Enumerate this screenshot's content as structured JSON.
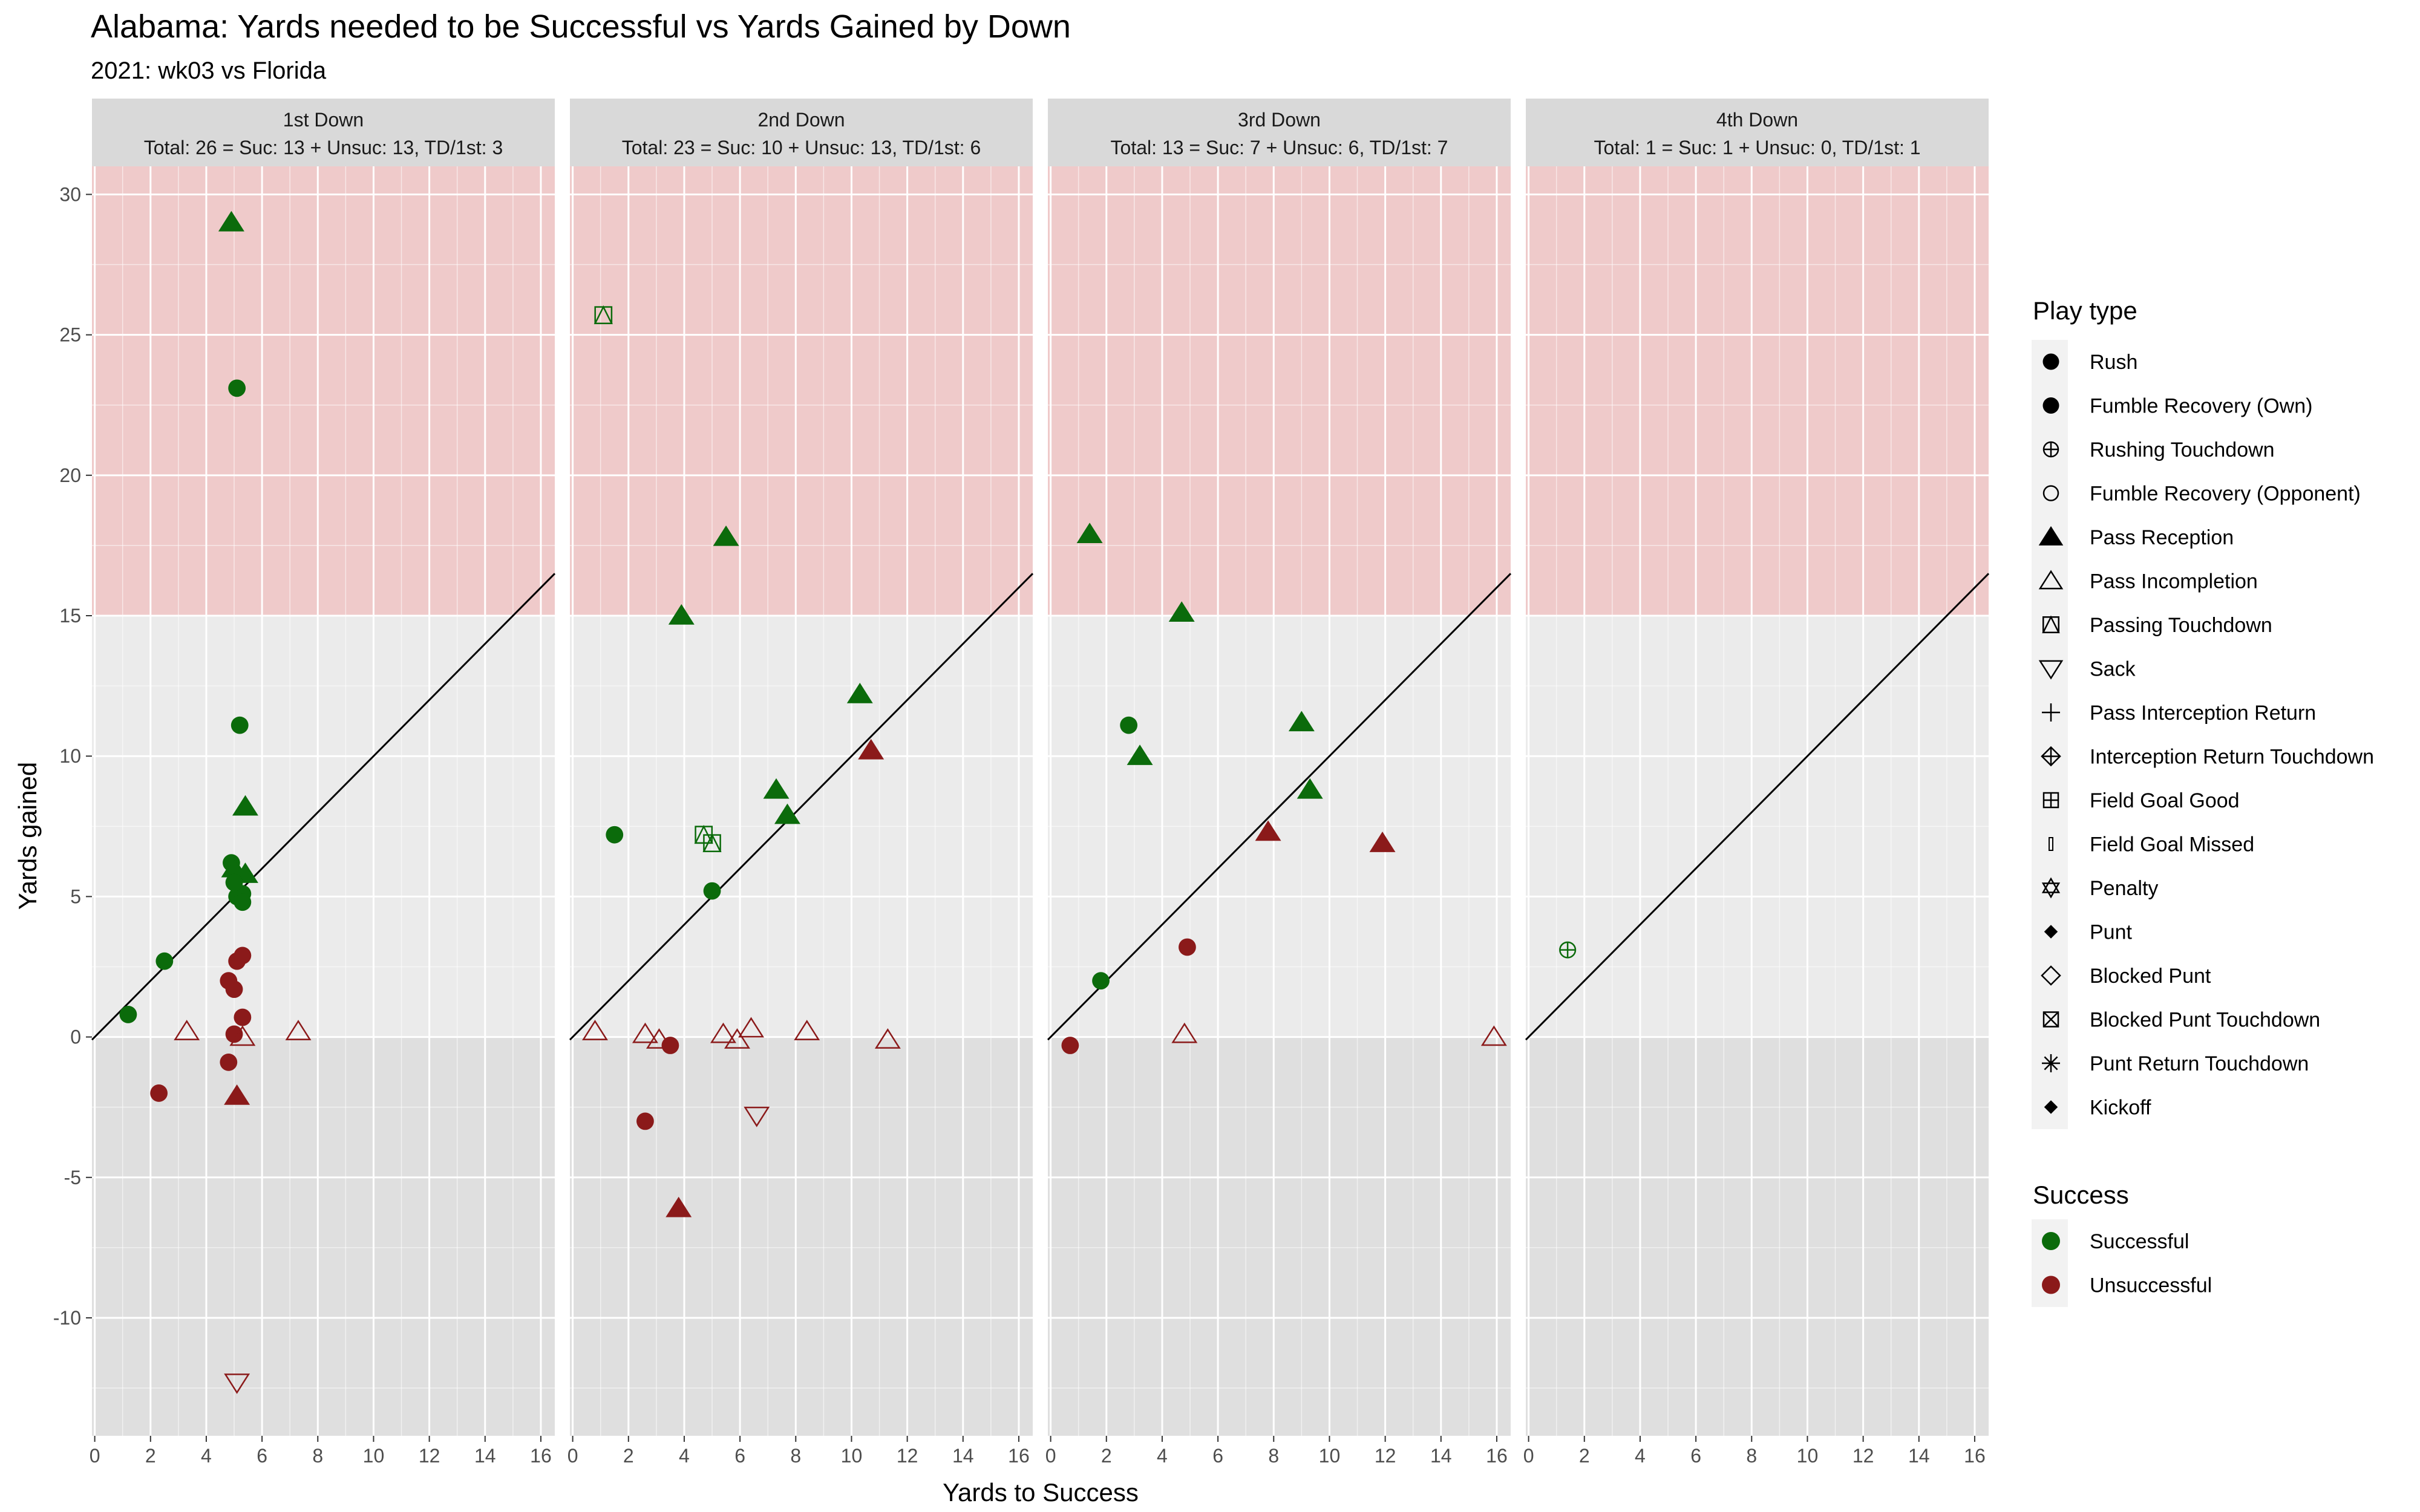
{
  "chart_data": {
    "type": "scatter",
    "title": "Alabama: Yards needed to be Successful vs Yards Gained by Down",
    "subtitle": "2021: wk03 vs Florida",
    "xlabel": "Yards to Success",
    "ylabel": "Yards gained",
    "xlim": [
      -0.1,
      16.5
    ],
    "ylim": [
      -14.2,
      31
    ],
    "x_ticks": [
      0,
      2,
      4,
      6,
      8,
      10,
      12,
      14,
      16
    ],
    "y_ticks": [
      -10,
      -5,
      0,
      5,
      10,
      15,
      20,
      25,
      30
    ],
    "grid": true,
    "reference_line": "y = x",
    "shaded_bands": [
      {
        "from": 15,
        "to": 31,
        "color": "#f0c4c4"
      },
      {
        "from": -14.2,
        "to": 0,
        "color": "#dddddd"
      }
    ],
    "colors": {
      "Successful": "#0b6b0b",
      "Unsuccessful": "#8b1a1a",
      "panel_bg": "#ebebeb",
      "strip_bg": "#d9d9d9"
    },
    "panels": [
      {
        "title": "1st Down",
        "summary": "Total: 26 = Suc: 13 + Unsuc: 13, TD/1st: 3",
        "points": [
          {
            "x": 4.9,
            "y": 29.0,
            "shape": "triangle",
            "success": true
          },
          {
            "x": 5.1,
            "y": 23.1,
            "shape": "circle",
            "success": true
          },
          {
            "x": 5.2,
            "y": 11.1,
            "shape": "circle",
            "success": true
          },
          {
            "x": 5.4,
            "y": 8.2,
            "shape": "triangle",
            "success": true
          },
          {
            "x": 4.9,
            "y": 6.2,
            "shape": "circle",
            "success": true
          },
          {
            "x": 5.0,
            "y": 6.0,
            "shape": "triangle",
            "success": true
          },
          {
            "x": 5.4,
            "y": 5.8,
            "shape": "triangle",
            "success": true
          },
          {
            "x": 5.1,
            "y": 5.0,
            "shape": "circle",
            "success": true
          },
          {
            "x": 5.3,
            "y": 5.1,
            "shape": "circle",
            "success": true
          },
          {
            "x": 5.3,
            "y": 4.8,
            "shape": "circle",
            "success": true
          },
          {
            "x": 2.5,
            "y": 2.7,
            "shape": "circle",
            "success": true
          },
          {
            "x": 1.2,
            "y": 0.8,
            "shape": "circle",
            "success": true
          },
          {
            "x": 5.0,
            "y": 5.5,
            "shape": "circle",
            "success": true
          },
          {
            "x": 5.3,
            "y": 2.9,
            "shape": "circle",
            "success": false
          },
          {
            "x": 5.1,
            "y": 2.7,
            "shape": "circle",
            "success": false
          },
          {
            "x": 4.8,
            "y": 2.0,
            "shape": "circle",
            "success": false
          },
          {
            "x": 5.0,
            "y": 1.7,
            "shape": "circle",
            "success": false
          },
          {
            "x": 5.3,
            "y": 0.7,
            "shape": "circle",
            "success": false
          },
          {
            "x": 5.0,
            "y": 0.1,
            "shape": "circle",
            "success": false
          },
          {
            "x": 3.3,
            "y": 0.2,
            "shape": "triangle-open",
            "success": false
          },
          {
            "x": 7.3,
            "y": 0.2,
            "shape": "triangle-open",
            "success": false
          },
          {
            "x": 5.3,
            "y": 0.0,
            "shape": "triangle-open",
            "success": false
          },
          {
            "x": 4.8,
            "y": -0.9,
            "shape": "circle",
            "success": false
          },
          {
            "x": 2.3,
            "y": -2.0,
            "shape": "circle",
            "success": false
          },
          {
            "x": 5.1,
            "y": -2.1,
            "shape": "triangle",
            "success": false
          },
          {
            "x": 5.1,
            "y": -12.3,
            "shape": "triangle-down-open",
            "success": false
          }
        ]
      },
      {
        "title": "2nd Down",
        "summary": "Total: 23 = Suc: 10 + Unsuc: 13, TD/1st: 6",
        "points": [
          {
            "x": 1.1,
            "y": 25.7,
            "shape": "square-triangle",
            "success": true
          },
          {
            "x": 5.5,
            "y": 17.8,
            "shape": "triangle",
            "success": true
          },
          {
            "x": 3.9,
            "y": 15.0,
            "shape": "triangle",
            "success": true
          },
          {
            "x": 10.3,
            "y": 12.2,
            "shape": "triangle",
            "success": true
          },
          {
            "x": 7.3,
            "y": 8.8,
            "shape": "triangle",
            "success": true
          },
          {
            "x": 7.7,
            "y": 7.9,
            "shape": "triangle",
            "success": true
          },
          {
            "x": 1.5,
            "y": 7.2,
            "shape": "circle",
            "success": true
          },
          {
            "x": 4.7,
            "y": 7.2,
            "shape": "square-triangle",
            "success": true
          },
          {
            "x": 5.0,
            "y": 6.9,
            "shape": "square-triangle",
            "success": true
          },
          {
            "x": 5.0,
            "y": 5.2,
            "shape": "circle",
            "success": true
          },
          {
            "x": 10.7,
            "y": 10.2,
            "shape": "triangle",
            "success": false
          },
          {
            "x": 0.8,
            "y": 0.2,
            "shape": "triangle-open",
            "success": false
          },
          {
            "x": 2.6,
            "y": 0.1,
            "shape": "triangle-open",
            "success": false
          },
          {
            "x": 3.1,
            "y": -0.1,
            "shape": "triangle-open",
            "success": false
          },
          {
            "x": 5.4,
            "y": 0.1,
            "shape": "triangle-open",
            "success": false
          },
          {
            "x": 5.9,
            "y": -0.1,
            "shape": "triangle-open",
            "success": false
          },
          {
            "x": 6.4,
            "y": 0.3,
            "shape": "triangle-open",
            "success": false
          },
          {
            "x": 8.4,
            "y": 0.2,
            "shape": "triangle-open",
            "success": false
          },
          {
            "x": 11.3,
            "y": -0.1,
            "shape": "triangle-open",
            "success": false
          },
          {
            "x": 3.5,
            "y": -0.3,
            "shape": "circle",
            "success": false
          },
          {
            "x": 2.6,
            "y": -3.0,
            "shape": "circle",
            "success": false
          },
          {
            "x": 6.6,
            "y": -2.8,
            "shape": "triangle-down-open",
            "success": false
          },
          {
            "x": 3.8,
            "y": -6.1,
            "shape": "triangle",
            "success": false
          }
        ]
      },
      {
        "title": "3rd Down",
        "summary": "Total: 13 = Suc: 7 + Unsuc: 6, TD/1st: 7",
        "points": [
          {
            "x": 1.4,
            "y": 17.9,
            "shape": "triangle",
            "success": true
          },
          {
            "x": 4.7,
            "y": 15.1,
            "shape": "triangle",
            "success": true
          },
          {
            "x": 2.8,
            "y": 11.1,
            "shape": "circle",
            "success": true
          },
          {
            "x": 9.0,
            "y": 11.2,
            "shape": "triangle",
            "success": true
          },
          {
            "x": 3.2,
            "y": 10.0,
            "shape": "triangle",
            "success": true
          },
          {
            "x": 9.3,
            "y": 8.8,
            "shape": "triangle",
            "success": true
          },
          {
            "x": 1.8,
            "y": 2.0,
            "shape": "circle",
            "success": true
          },
          {
            "x": 7.8,
            "y": 7.3,
            "shape": "triangle",
            "success": false
          },
          {
            "x": 11.9,
            "y": 6.9,
            "shape": "triangle",
            "success": false
          },
          {
            "x": 4.9,
            "y": 3.2,
            "shape": "circle",
            "success": false
          },
          {
            "x": 4.8,
            "y": 0.1,
            "shape": "triangle-open",
            "success": false
          },
          {
            "x": 15.9,
            "y": 0.0,
            "shape": "triangle-open",
            "success": false
          },
          {
            "x": 0.7,
            "y": -0.3,
            "shape": "circle",
            "success": false
          }
        ]
      },
      {
        "title": "4th Down",
        "summary": "Total: 1 = Suc: 1 + Unsuc: 0, TD/1st: 1",
        "points": [
          {
            "x": 1.4,
            "y": 3.1,
            "shape": "circle-plus",
            "success": true
          }
        ]
      }
    ],
    "legend_play_type": {
      "title": "Play type",
      "placement": "right",
      "items": [
        {
          "label": "Rush",
          "shape": "circle"
        },
        {
          "label": "Fumble Recovery (Own)",
          "shape": "circle"
        },
        {
          "label": "Rushing Touchdown",
          "shape": "circle-plus"
        },
        {
          "label": "Fumble Recovery (Opponent)",
          "shape": "circle-open"
        },
        {
          "label": "Pass Reception",
          "shape": "triangle"
        },
        {
          "label": "Pass Incompletion",
          "shape": "triangle-open"
        },
        {
          "label": "Passing Touchdown",
          "shape": "square-triangle"
        },
        {
          "label": "Sack",
          "shape": "triangle-down-open"
        },
        {
          "label": "Pass Interception Return",
          "shape": "plus"
        },
        {
          "label": "Interception Return Touchdown",
          "shape": "diamond-plus"
        },
        {
          "label": "Field Goal Good",
          "shape": "square-plus"
        },
        {
          "label": "Field Goal Missed",
          "shape": "thin-rect"
        },
        {
          "label": "Penalty",
          "shape": "star-of-david"
        },
        {
          "label": "Punt",
          "shape": "diamond-small"
        },
        {
          "label": "Blocked Punt",
          "shape": "diamond-open"
        },
        {
          "label": "Blocked Punt Touchdown",
          "shape": "square-x"
        },
        {
          "label": "Punt Return Touchdown",
          "shape": "asterisk"
        },
        {
          "label": "Kickoff",
          "shape": "diamond-small"
        }
      ]
    },
    "legend_success": {
      "title": "Success",
      "placement": "right",
      "items": [
        {
          "label": "Successful",
          "color": "#0b6b0b"
        },
        {
          "label": "Unsuccessful",
          "color": "#8b1a1a"
        }
      ]
    }
  }
}
